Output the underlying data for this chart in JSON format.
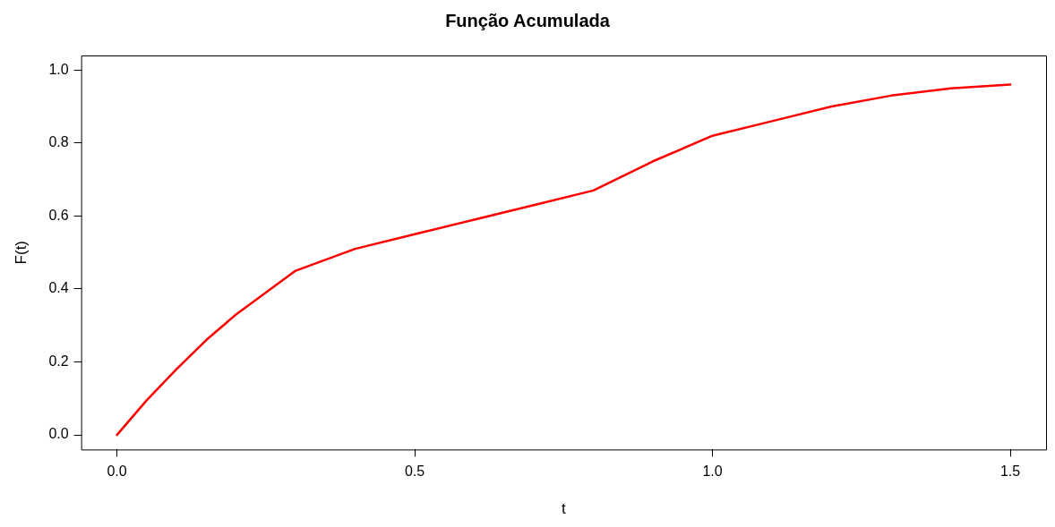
{
  "chart_data": {
    "type": "line",
    "title": "Função Acumulada",
    "xlabel": "t",
    "ylabel": "F(t)",
    "x": [
      0,
      0.05,
      0.1,
      0.15,
      0.2,
      0.25,
      0.3,
      0.35,
      0.4,
      0.5,
      0.6,
      0.7,
      0.8,
      0.85,
      0.9,
      1.0,
      1.1,
      1.2,
      1.3,
      1.4,
      1.5
    ],
    "series": [
      {
        "color": "#ff0000",
        "values": [
          0,
          0.095,
          0.18,
          0.26,
          0.33,
          0.39,
          0.45,
          0.48,
          0.51,
          0.55,
          0.59,
          0.63,
          0.67,
          0.71,
          0.75,
          0.82,
          0.86,
          0.9,
          0.93,
          0.95,
          0.96
        ]
      }
    ],
    "xlim": [
      -0.06,
      1.56
    ],
    "ylim": [
      -0.04,
      1.04
    ],
    "xticks": [
      {
        "value": 0,
        "label": "0.0"
      },
      0.5,
      {
        "value": 1,
        "label": "1.0"
      },
      1.5
    ],
    "yticks": [
      {
        "value": 0,
        "label": "0.0"
      },
      0.2,
      0.4,
      0.6,
      0.8,
      {
        "value": 1,
        "label": "1.0"
      }
    ],
    "grid": false,
    "legend": false,
    "marker": "none",
    "line_style": "solid"
  }
}
